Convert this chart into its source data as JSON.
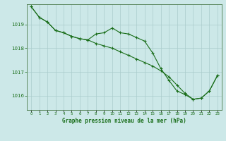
{
  "title": "Graphe pression niveau de la mer (hPa)",
  "background_color": "#cce8e8",
  "grid_color": "#aacccc",
  "line_color": "#1a6e1a",
  "xlim": [
    -0.5,
    23.5
  ],
  "ylim": [
    1015.4,
    1019.85
  ],
  "yticks": [
    1016,
    1017,
    1018,
    1019
  ],
  "xticks": [
    0,
    1,
    2,
    3,
    4,
    5,
    6,
    7,
    8,
    9,
    10,
    11,
    12,
    13,
    14,
    15,
    16,
    17,
    18,
    19,
    20,
    21,
    22,
    23
  ],
  "series1_y": [
    1019.75,
    1019.3,
    1019.1,
    1018.75,
    1018.65,
    1018.5,
    1018.4,
    1018.35,
    1018.2,
    1018.1,
    1018.0,
    1017.85,
    1017.7,
    1017.55,
    1017.4,
    1017.25,
    1017.05,
    1016.8,
    1016.45,
    1016.1,
    1015.85,
    1015.9,
    1016.2,
    1016.85
  ],
  "series2_y": [
    1019.75,
    1019.3,
    1019.1,
    1018.75,
    1018.65,
    1018.5,
    1018.4,
    1018.35,
    1018.6,
    1018.65,
    1018.85,
    1018.65,
    1018.6,
    1018.45,
    1018.3,
    1017.8,
    1017.15,
    1016.65,
    1016.2,
    1016.05,
    1015.85,
    1015.9,
    1016.2,
    1016.85
  ]
}
